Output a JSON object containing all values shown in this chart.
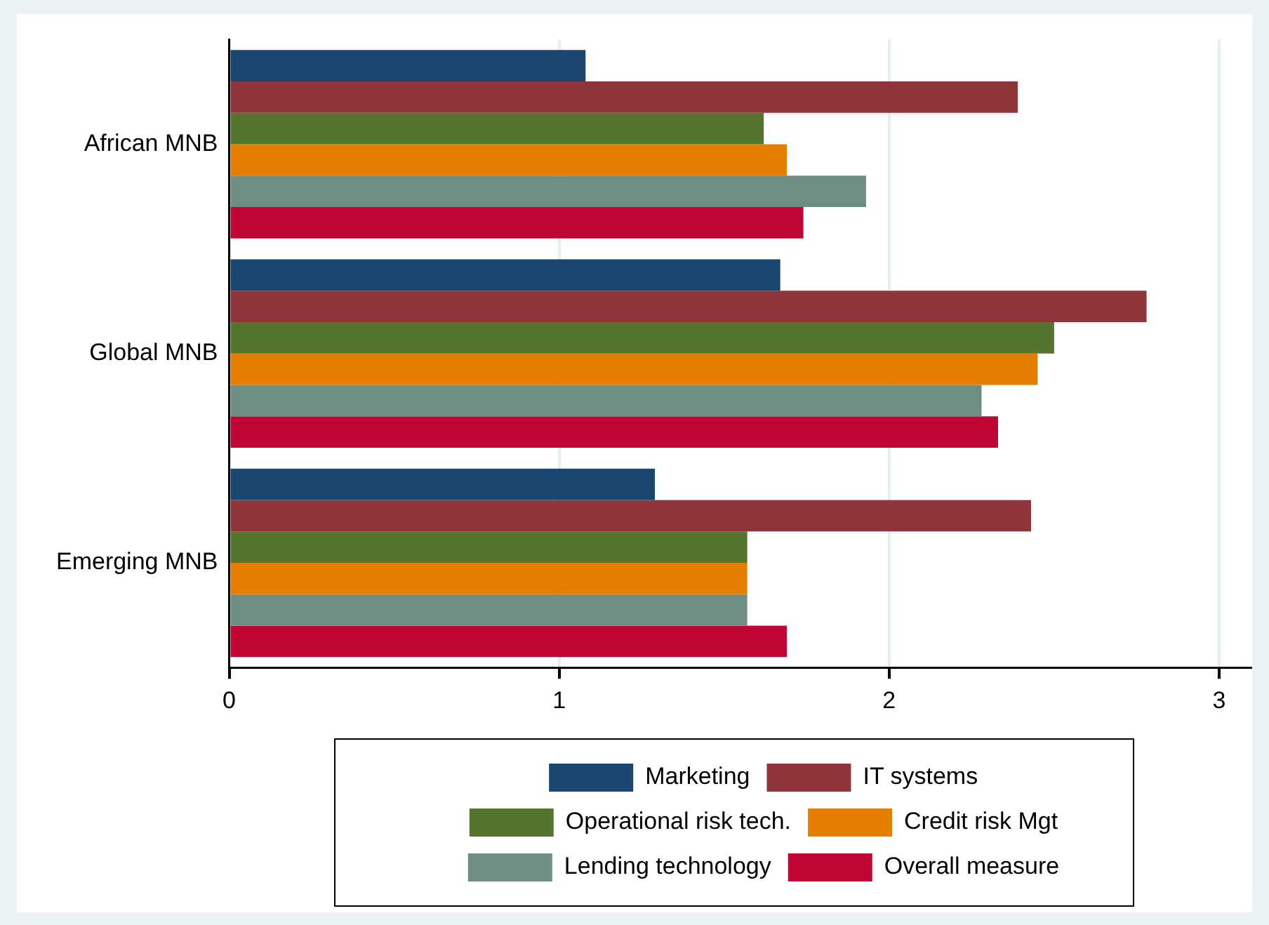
{
  "chart_data": {
    "type": "bar",
    "orientation": "horizontal",
    "categories": [
      "African MNB",
      "Global MNB",
      "Emerging MNB"
    ],
    "series": [
      {
        "name": "Marketing",
        "color": "#1a476f",
        "values": [
          1.08,
          1.67,
          1.29
        ]
      },
      {
        "name": "IT systems",
        "color": "#90353b",
        "values": [
          2.39,
          2.78,
          2.43
        ]
      },
      {
        "name": "Operational risk tech.",
        "color": "#55752f",
        "values": [
          1.62,
          2.5,
          1.57
        ]
      },
      {
        "name": "Credit risk Mgt",
        "color": "#e37e00",
        "values": [
          1.69,
          2.45,
          1.57
        ]
      },
      {
        "name": "Lending technology",
        "color": "#6e8e84",
        "values": [
          1.93,
          2.28,
          1.57
        ]
      },
      {
        "name": "Overall measure",
        "color": "#c10534",
        "values": [
          1.74,
          2.33,
          1.69
        ]
      }
    ],
    "xlim": [
      0,
      3.1
    ],
    "xticks": [
      0,
      1,
      2,
      3
    ],
    "grid": "x",
    "legend": "bottom"
  }
}
